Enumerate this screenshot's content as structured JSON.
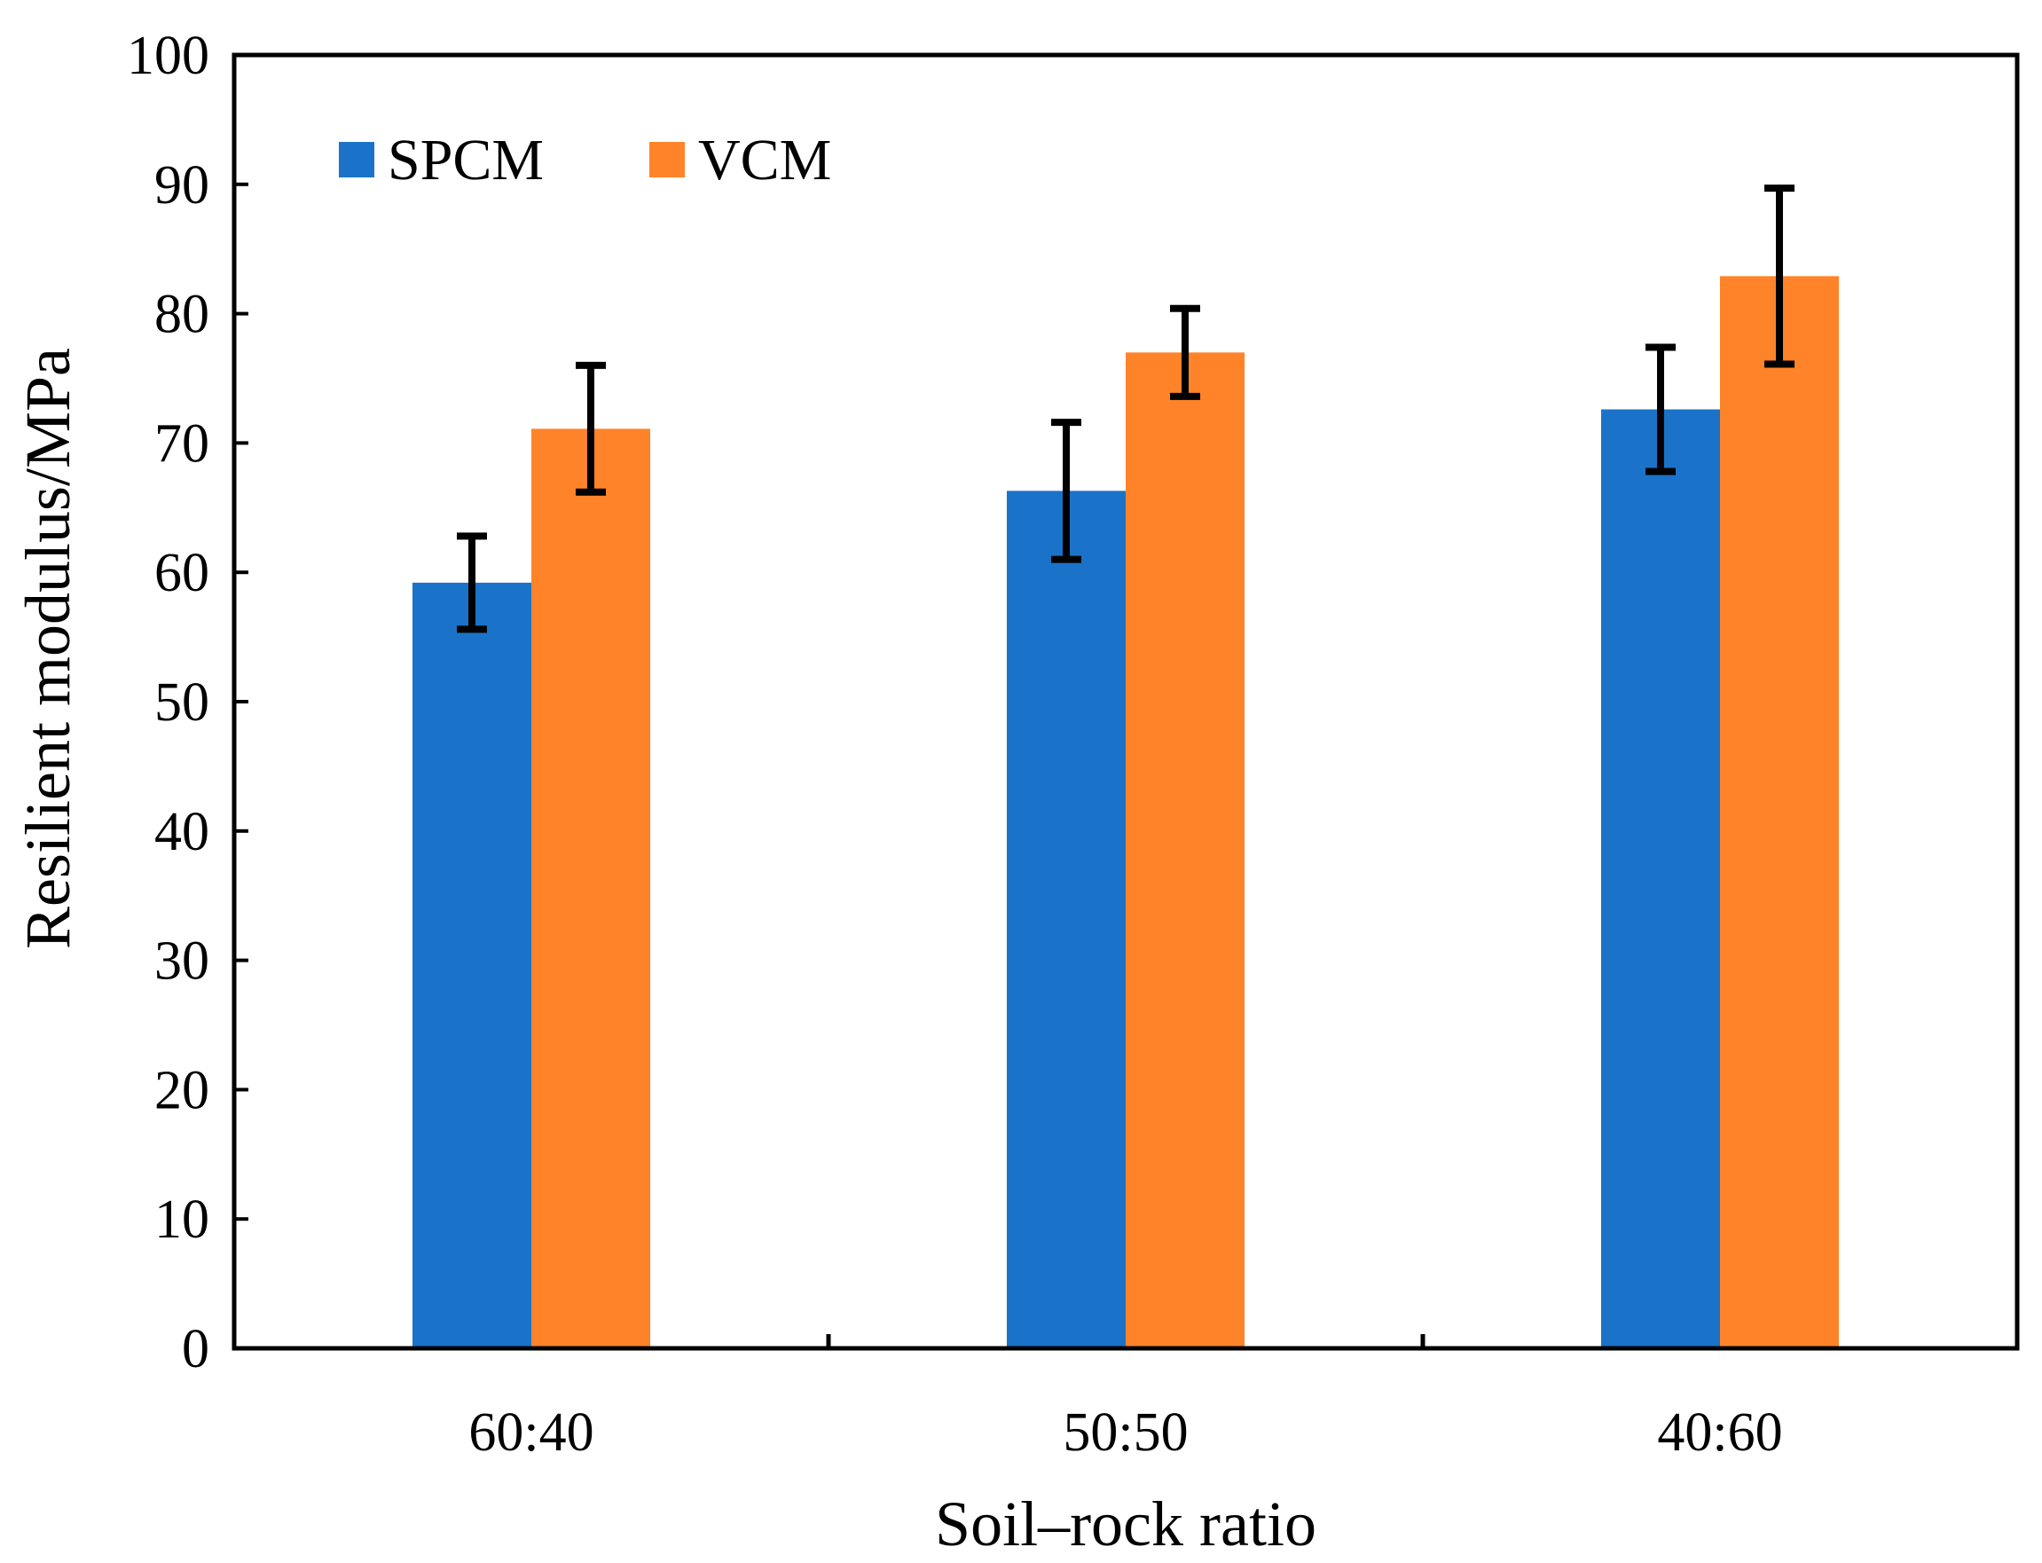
{
  "chart_data": {
    "type": "bar",
    "title": "",
    "xlabel": "Soil–rock ratio",
    "ylabel": "Resilient modulus/MPa",
    "ylim": [
      0,
      100
    ],
    "yticks": [
      "0",
      "10",
      "20",
      "30",
      "40",
      "50",
      "60",
      "70",
      "80",
      "90",
      "100"
    ],
    "categories": [
      "60:40",
      "50:50",
      "40:60"
    ],
    "series": [
      {
        "name": "SPCM",
        "color": "#1A73C8",
        "values": [
          59.2,
          66.3,
          72.6
        ],
        "error": [
          3.6,
          5.3,
          4.8
        ]
      },
      {
        "name": "VCM",
        "color": "#FF8329",
        "values": [
          71.1,
          77.0,
          82.9
        ],
        "error": [
          4.9,
          3.4,
          6.8
        ]
      }
    ],
    "error_bar_color": "#000000",
    "legend_position": "top-left",
    "grid": false
  }
}
